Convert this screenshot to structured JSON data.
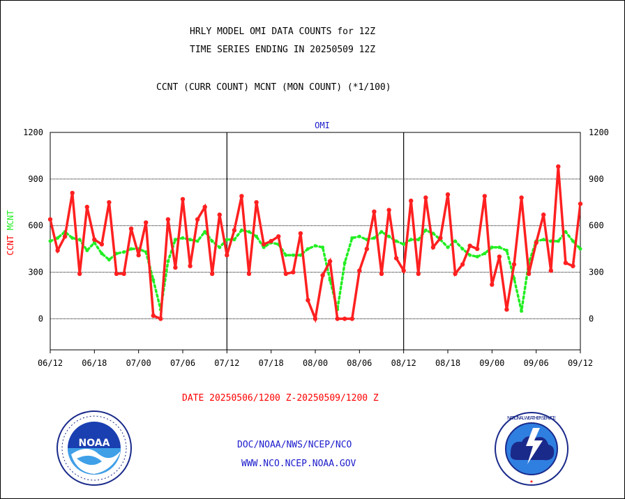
{
  "header": {
    "title_line1": "HRLY MODEL OMI DATA COUNTS for 12Z",
    "title_line2": "TIME SERIES ENDING IN 20250509 12Z",
    "subtitle": "CCNT (CURR COUNT) MCNT (MON COUNT) (*1/100)"
  },
  "footer": {
    "date_range": "DATE 20250506/1200 Z-20250509/1200 Z",
    "org": "DOC/NOAA/NWS/NCEP/NCO",
    "url": "WWW.NCO.NCEP.NOAA.GOV"
  },
  "logos": {
    "left": "NOAA",
    "right": "NATIONAL WEATHER SERVICE"
  },
  "colors": {
    "ccnt": "#ff2020",
    "mcnt": "#22ee22",
    "text_red": "#ff0000",
    "text_blue": "#1a1acc"
  },
  "chart_data": {
    "type": "line",
    "title": "OMI",
    "ylabel_left": [
      "CCNT",
      "MCNT"
    ],
    "ylim": [
      -200,
      1200
    ],
    "yticks": [
      0,
      300,
      600,
      900,
      1200
    ],
    "xlim": [
      0,
      72
    ],
    "xticks": [
      {
        "x": 0,
        "label": "06/12"
      },
      {
        "x": 6,
        "label": "06/18"
      },
      {
        "x": 12,
        "label": "07/00"
      },
      {
        "x": 18,
        "label": "07/06"
      },
      {
        "x": 24,
        "label": "07/12"
      },
      {
        "x": 30,
        "label": "07/18"
      },
      {
        "x": 36,
        "label": "08/00"
      },
      {
        "x": 42,
        "label": "08/06"
      },
      {
        "x": 48,
        "label": "08/12"
      },
      {
        "x": 54,
        "label": "08/18"
      },
      {
        "x": 60,
        "label": "09/00"
      },
      {
        "x": 66,
        "label": "09/06"
      },
      {
        "x": 72,
        "label": "09/12"
      }
    ],
    "day_separators": [
      24,
      48
    ],
    "grid": true,
    "series": [
      {
        "name": "CCNT",
        "style": "solid",
        "values": [
          640,
          440,
          530,
          810,
          290,
          720,
          510,
          480,
          750,
          290,
          290,
          580,
          410,
          620,
          20,
          0,
          640,
          330,
          770,
          340,
          640,
          720,
          290,
          670,
          410,
          570,
          790,
          290,
          750,
          480,
          500,
          530,
          290,
          300,
          550,
          120,
          0,
          280,
          370,
          0,
          0,
          0,
          310,
          450,
          690,
          290,
          700,
          390,
          310,
          760,
          290,
          780,
          460,
          520,
          800,
          290,
          350,
          470,
          450,
          790,
          220,
          400,
          60,
          350,
          780,
          290,
          490,
          670,
          310,
          980,
          360,
          340,
          740
        ]
      },
      {
        "name": "MCNT",
        "style": "dotted",
        "values": [
          500,
          520,
          560,
          520,
          510,
          440,
          490,
          420,
          380,
          420,
          430,
          450,
          450,
          430,
          250,
          60,
          370,
          510,
          520,
          510,
          500,
          560,
          500,
          460,
          510,
          510,
          570,
          560,
          530,
          460,
          490,
          480,
          410,
          410,
          410,
          450,
          470,
          460,
          250,
          60,
          360,
          520,
          530,
          510,
          520,
          560,
          530,
          500,
          480,
          510,
          510,
          570,
          550,
          510,
          460,
          500,
          450,
          410,
          400,
          420,
          460,
          460,
          440,
          260,
          50,
          360,
          500,
          510,
          500,
          500,
          560,
          500,
          450
        ]
      }
    ]
  }
}
